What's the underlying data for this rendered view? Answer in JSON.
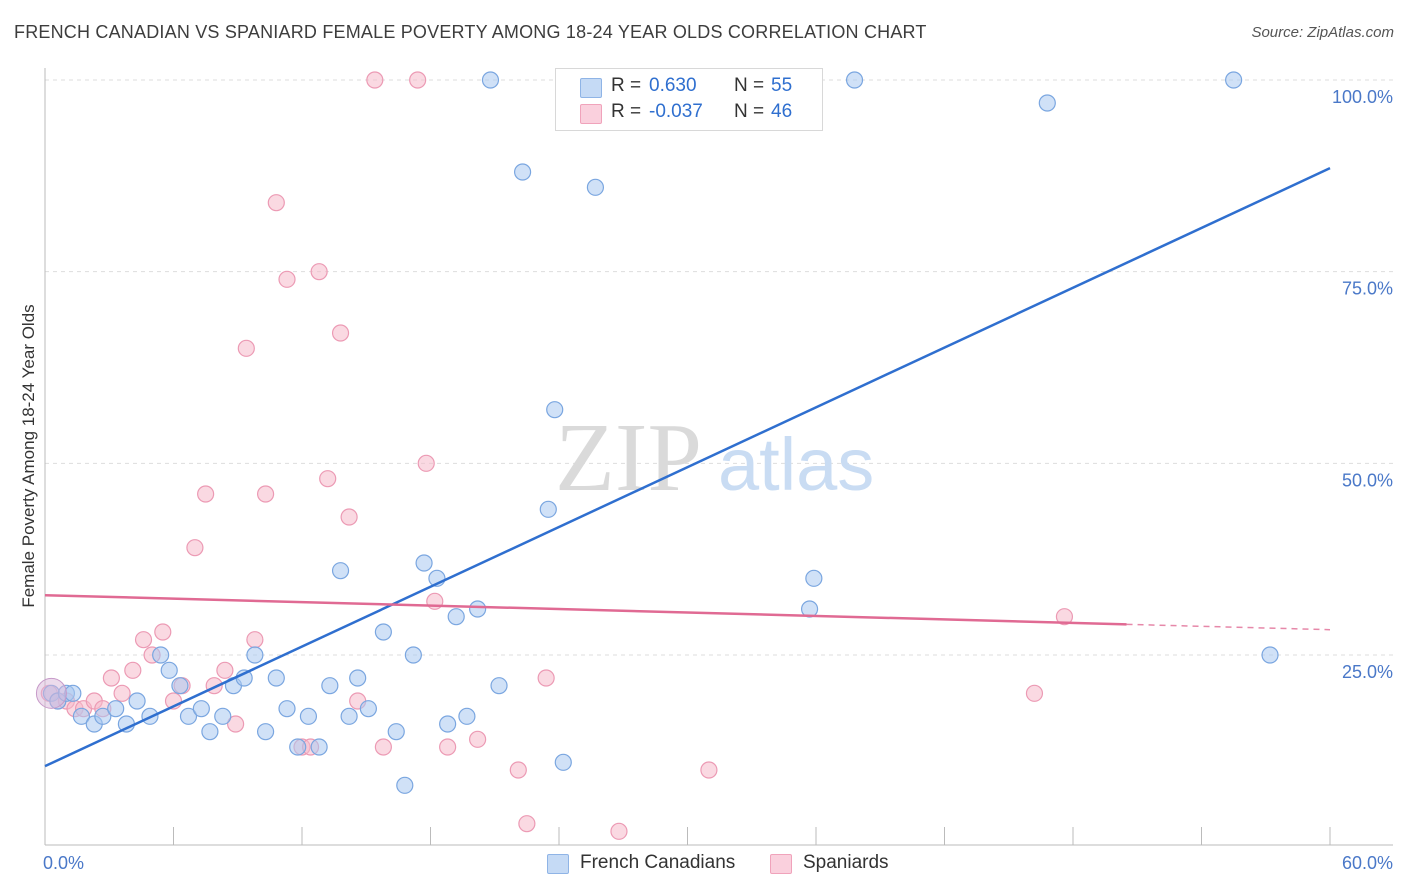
{
  "title": "FRENCH CANADIAN VS SPANIARD FEMALE POVERTY AMONG 18-24 YEAR OLDS CORRELATION CHART",
  "source": "Source: ZipAtlas.com",
  "watermark": {
    "zip": "ZIP",
    "atlas": "atlas"
  },
  "legend": {
    "rows": [
      {
        "r_label": "R =",
        "r_value": "0.630",
        "n_label": "N =",
        "n_value": "55",
        "color": "#a9c8f0"
      },
      {
        "r_label": "R =",
        "r_value": "-0.037",
        "n_label": "N =",
        "n_value": "46",
        "color": "#f6b9cb"
      }
    ]
  },
  "bottom_legend": [
    {
      "label": "French Canadians",
      "color": "#a9c8f0"
    },
    {
      "label": "Spaniards",
      "color": "#f6b9cb"
    }
  ],
  "chart_data": {
    "type": "scatter",
    "title": "FRENCH CANADIAN VS SPANIARD FEMALE POVERTY AMONG 18-24 YEAR OLDS CORRELATION CHART",
    "xlabel": "",
    "ylabel": "Female Poverty Among 18-24 Year Olds",
    "xlim": [
      0,
      60
    ],
    "ylim": [
      0,
      100
    ],
    "x_tick_labels": [
      "0.0%",
      "60.0%"
    ],
    "y_tick_labels": [
      "25.0%",
      "50.0%",
      "75.0%",
      "100.0%"
    ],
    "y_ticks": [
      25,
      50,
      75,
      100
    ],
    "grid": true,
    "colors": {
      "blue": "#2f6fcf",
      "pink": "#e06a93",
      "blue_fill": "#a9c8f0",
      "pink_fill": "#f6b9cb"
    },
    "series": [
      {
        "name": "French Canadians",
        "trend": {
          "x": [
            0,
            60
          ],
          "y": [
            10.5,
            88.5
          ]
        },
        "points": [
          [
            0.3,
            20
          ],
          [
            0.6,
            19
          ],
          [
            1.0,
            20
          ],
          [
            1.3,
            20
          ],
          [
            1.7,
            17
          ],
          [
            2.3,
            16
          ],
          [
            2.7,
            17
          ],
          [
            3.3,
            18
          ],
          [
            3.8,
            16
          ],
          [
            4.3,
            19
          ],
          [
            4.9,
            17
          ],
          [
            5.4,
            25
          ],
          [
            5.8,
            23
          ],
          [
            6.3,
            21
          ],
          [
            6.7,
            17
          ],
          [
            7.3,
            18
          ],
          [
            7.7,
            15
          ],
          [
            8.3,
            17
          ],
          [
            8.8,
            21
          ],
          [
            9.3,
            22
          ],
          [
            9.8,
            25
          ],
          [
            10.3,
            15
          ],
          [
            10.8,
            22
          ],
          [
            11.3,
            18
          ],
          [
            11.8,
            13
          ],
          [
            12.3,
            17
          ],
          [
            12.8,
            13
          ],
          [
            13.3,
            21
          ],
          [
            13.8,
            36
          ],
          [
            14.2,
            17
          ],
          [
            14.6,
            22
          ],
          [
            15.1,
            18
          ],
          [
            15.8,
            28
          ],
          [
            16.4,
            15
          ],
          [
            16.8,
            8
          ],
          [
            17.2,
            25
          ],
          [
            17.7,
            37
          ],
          [
            18.3,
            35
          ],
          [
            18.8,
            16
          ],
          [
            19.2,
            30
          ],
          [
            19.7,
            17
          ],
          [
            20.2,
            31
          ],
          [
            21.2,
            21
          ],
          [
            20.8,
            100
          ],
          [
            22.3,
            88
          ],
          [
            23.8,
            57
          ],
          [
            23.5,
            44
          ],
          [
            24.2,
            11
          ],
          [
            25.7,
            86
          ],
          [
            35.7,
            31
          ],
          [
            35.9,
            35
          ],
          [
            37.8,
            100
          ],
          [
            46.8,
            97
          ],
          [
            55.5,
            100
          ],
          [
            57.2,
            25
          ]
        ]
      },
      {
        "name": "Spaniards",
        "trend": {
          "x": [
            0,
            50.5
          ],
          "y": [
            32.8,
            29.0
          ],
          "dash_x": [
            50.5,
            60
          ],
          "dash_y": [
            29.0,
            28.3
          ]
        },
        "points": [
          [
            0.2,
            20
          ],
          [
            0.6,
            19
          ],
          [
            1.0,
            19
          ],
          [
            1.4,
            18
          ],
          [
            1.8,
            18
          ],
          [
            2.3,
            19
          ],
          [
            2.7,
            18
          ],
          [
            3.1,
            22
          ],
          [
            3.6,
            20
          ],
          [
            4.1,
            23
          ],
          [
            4.6,
            27
          ],
          [
            5.0,
            25
          ],
          [
            5.5,
            28
          ],
          [
            6.0,
            19
          ],
          [
            6.4,
            21
          ],
          [
            7.0,
            39
          ],
          [
            7.5,
            46
          ],
          [
            7.9,
            21
          ],
          [
            8.4,
            23
          ],
          [
            8.9,
            16
          ],
          [
            9.4,
            65
          ],
          [
            9.8,
            27
          ],
          [
            10.3,
            46
          ],
          [
            10.8,
            84
          ],
          [
            11.3,
            74
          ],
          [
            12.0,
            13
          ],
          [
            12.4,
            13
          ],
          [
            12.8,
            75
          ],
          [
            13.2,
            48
          ],
          [
            13.8,
            67
          ],
          [
            14.2,
            43
          ],
          [
            14.6,
            19
          ],
          [
            15.4,
            100
          ],
          [
            15.8,
            13
          ],
          [
            17.4,
            100
          ],
          [
            17.8,
            50
          ],
          [
            18.2,
            32
          ],
          [
            18.8,
            13
          ],
          [
            20.2,
            14
          ],
          [
            22.1,
            10
          ],
          [
            22.5,
            3
          ],
          [
            23.4,
            22
          ],
          [
            26.8,
            2
          ],
          [
            31.0,
            10
          ],
          [
            46.2,
            20
          ],
          [
            47.6,
            30
          ]
        ]
      }
    ]
  }
}
